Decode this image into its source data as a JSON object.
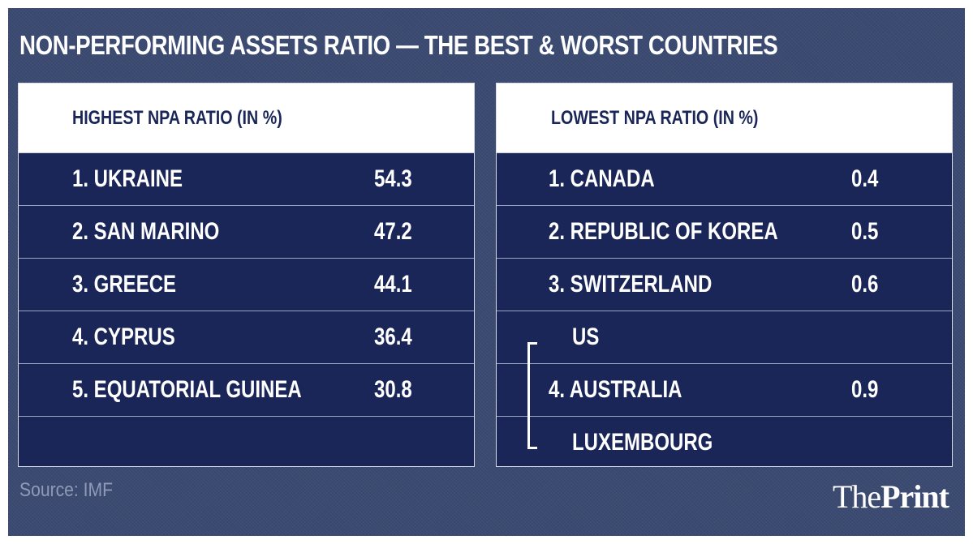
{
  "chart_data": {
    "type": "table",
    "title": "NON-PERFORMING ASSETS RATIO — THE BEST & WORST COUNTRIES",
    "tables": [
      {
        "header": "HIGHEST NPA RATIO (IN %)",
        "rows": [
          {
            "name": "1. UKRAINE",
            "value": "54.3"
          },
          {
            "name": "2. SAN MARINO",
            "value": "47.2"
          },
          {
            "name": "3. GREECE",
            "value": "44.1"
          },
          {
            "name": "4. CYPRUS",
            "value": "36.4"
          },
          {
            "name": "5. EQUATORIAL GUINEA",
            "value": "30.8"
          },
          {
            "name": "",
            "value": ""
          }
        ]
      },
      {
        "header": "LOWEST NPA RATIO (IN %)",
        "rows": [
          {
            "name": "1. CANADA",
            "value": "0.4"
          },
          {
            "name": "2. REPUBLIC OF KOREA",
            "value": "0.5"
          },
          {
            "name": "3. SWITZERLAND",
            "value": "0.6"
          },
          {
            "name": "US",
            "value": ""
          },
          {
            "name": "4. AUSTRALIA",
            "value": "0.9"
          },
          {
            "name": "LUXEMBOURG",
            "value": ""
          }
        ]
      }
    ]
  },
  "source": "Source: IMF",
  "logo": {
    "part1": "The",
    "part2": "Print"
  },
  "colors": {
    "background": "#3b4a72",
    "panel": "#1a2558",
    "header_bg": "#ffffff",
    "text": "#ffffff",
    "header_text": "#1a2558"
  }
}
